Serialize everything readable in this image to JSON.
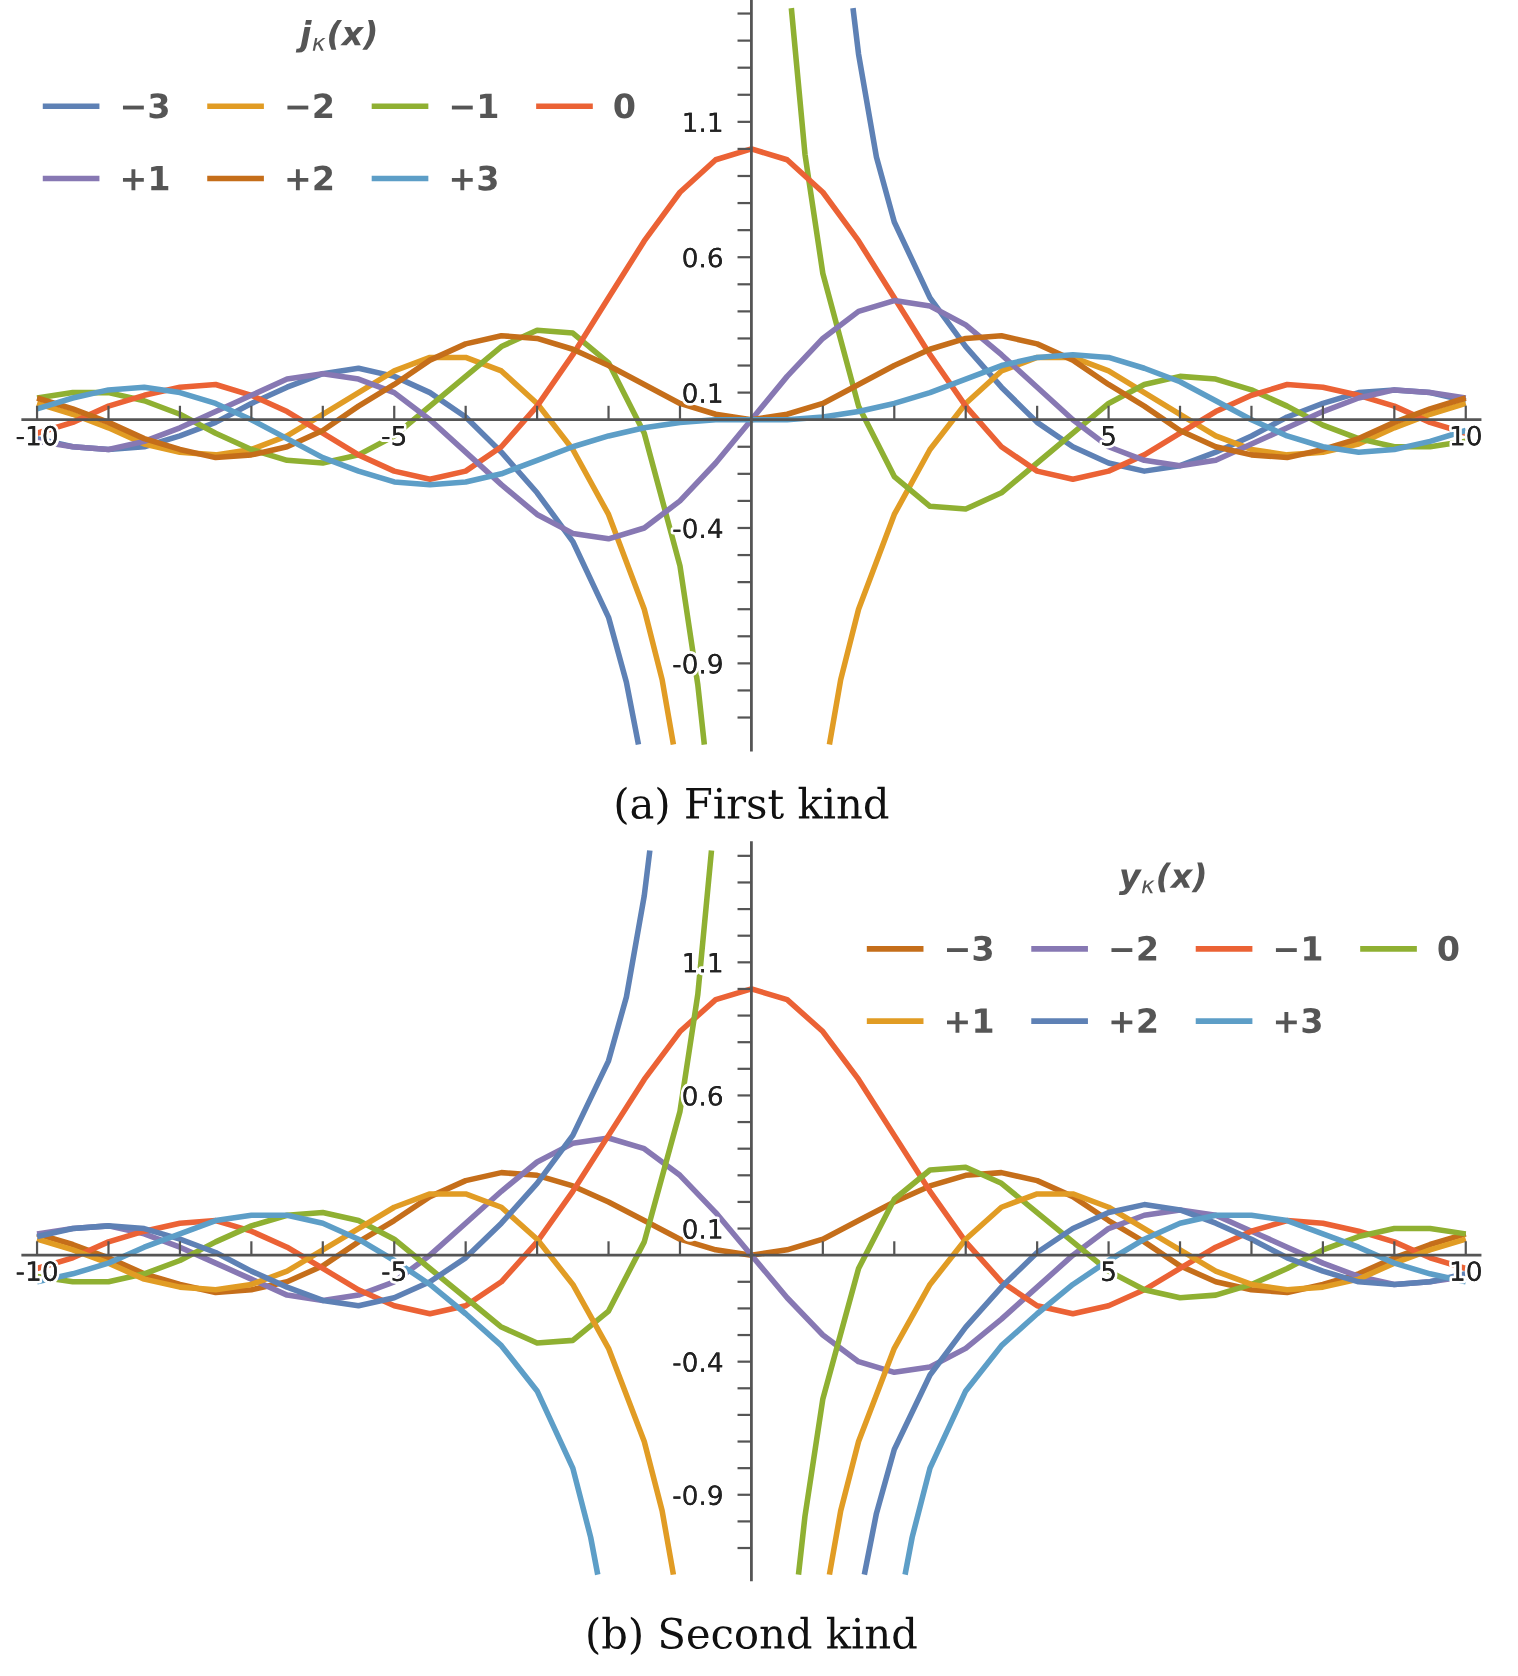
{
  "chart_data": [
    {
      "type": "line",
      "legend_title": "j$_{κ}$(x)",
      "legend": "top left",
      "annotations": [
        "(a) First kind"
      ],
      "xlim": [
        -10.2,
        10.2
      ],
      "ylim": [
        -1.22,
        1.55
      ],
      "xticks": [
        -10,
        {
          "value": -9,
          "label": null
        },
        {
          "value": -8,
          "label": null
        },
        {
          "value": -7,
          "label": null
        },
        {
          "value": -6,
          "label": null
        },
        -5,
        {
          "value": -4,
          "label": null
        },
        {
          "value": -3,
          "label": null
        },
        {
          "value": -2,
          "label": null
        },
        {
          "value": -1,
          "label": null
        },
        {
          "value": 1,
          "label": null
        },
        {
          "value": 2,
          "label": null
        },
        {
          "value": 3,
          "label": null
        },
        {
          "value": 4,
          "label": null
        },
        5,
        {
          "value": 6,
          "label": null
        },
        {
          "value": 7,
          "label": null
        },
        {
          "value": 8,
          "label": null
        },
        {
          "value": 9,
          "label": null
        },
        10
      ],
      "yticks": [
        {
          "value": -1.1,
          "label": null
        },
        {
          "value": -1.0,
          "label": null
        },
        -0.9,
        {
          "value": -0.8,
          "label": null
        },
        {
          "value": -0.7,
          "label": null
        },
        {
          "value": -0.6,
          "label": null
        },
        {
          "value": -0.5,
          "label": null
        },
        -0.4,
        {
          "value": -0.3,
          "label": null
        },
        {
          "value": -0.2,
          "label": null
        },
        {
          "value": -0.1,
          "label": null
        },
        0.1,
        {
          "value": 0.2,
          "label": null
        },
        {
          "value": 0.3,
          "label": null
        },
        {
          "value": 0.4,
          "label": null
        },
        {
          "value": 0.5,
          "label": null
        },
        0.6,
        {
          "value": 0.7,
          "label": null
        },
        {
          "value": 0.8,
          "label": null
        },
        {
          "value": 0.9,
          "label": null
        },
        {
          "value": 1.0,
          "label": null
        },
        1.1,
        {
          "value": 1.2,
          "label": null
        },
        {
          "value": 1.3,
          "label": null
        },
        {
          "value": 1.4,
          "label": null
        },
        {
          "value": 1.5,
          "label": null
        }
      ],
      "x": [
        -10,
        -9.5,
        -9,
        -8.5,
        -8,
        -7.5,
        -7,
        -6.5,
        -6,
        -5.5,
        -5,
        -4.5,
        -4,
        -3.5,
        -3,
        -2.5,
        -2,
        -1.5,
        -1,
        -0.5,
        0,
        0.5,
        1,
        1.5,
        2,
        2.5,
        3,
        3.5,
        4,
        4.5,
        5,
        5.5,
        6,
        6.5,
        7,
        7.5,
        8,
        8.5,
        9,
        9.5,
        10
      ],
      "series": [
        {
          "name": "−3",
          "color": "#5e81b5",
          "x": [
            -10,
            -9.5,
            -9,
            -8.5,
            -8,
            -7.5,
            -7,
            -6.5,
            -6,
            -5.5,
            -5,
            -4.5,
            -4,
            -3.5,
            -3,
            -2.5,
            -2,
            -1.75,
            -1.581,
            0,
            1.422,
            1.5,
            1.75,
            2,
            2.5,
            3,
            3.5,
            4,
            4.5,
            5,
            5.5,
            6,
            6.5,
            7,
            7.5,
            8,
            8.5,
            9,
            9.5,
            10
          ],
          "values": [
            -0.07,
            -0.1,
            -0.11,
            -0.1,
            -0.06,
            -0.01,
            0.06,
            0.12,
            0.17,
            0.19,
            0.16,
            0.1,
            0.01,
            -0.12,
            -0.27,
            -0.45,
            -0.73,
            -0.97,
            -1.2,
            null,
            1.52,
            1.35,
            0.97,
            0.73,
            0.45,
            0.27,
            0.12,
            -0.01,
            -0.1,
            -0.16,
            -0.19,
            -0.17,
            -0.12,
            -0.06,
            0.01,
            0.06,
            0.1,
            0.11,
            0.1,
            0.07
          ]
        },
        {
          "name": "−2",
          "color": "#e19c24",
          "x": [
            -10,
            -9.5,
            -9,
            -8.5,
            -8,
            -7.5,
            -7,
            -6.5,
            -6,
            -5.5,
            -5,
            -4.5,
            -4,
            -3.5,
            -3,
            -2.5,
            -2,
            -1.5,
            -1.25,
            -1.092,
            0,
            1.092,
            1.25,
            1.5,
            2,
            2.5,
            3,
            3.5,
            4,
            4.5,
            5,
            5.5,
            6,
            6.5,
            7,
            7.5,
            8,
            8.5,
            9,
            9.5,
            10
          ],
          "values": [
            0.06,
            0.02,
            -0.03,
            -0.09,
            -0.12,
            -0.13,
            -0.11,
            -0.06,
            0.02,
            0.1,
            0.18,
            0.23,
            0.23,
            0.18,
            0.06,
            -0.11,
            -0.35,
            -0.7,
            -0.96,
            -1.2,
            null,
            -1.2,
            -0.96,
            -0.7,
            -0.35,
            -0.11,
            0.06,
            0.18,
            0.23,
            0.23,
            0.18,
            0.1,
            0.02,
            -0.06,
            -0.11,
            -0.13,
            -0.12,
            -0.09,
            -0.03,
            0.02,
            0.06
          ]
        },
        {
          "name": "−1",
          "color": "#8fb032",
          "x": [
            -10,
            -9.5,
            -9,
            -8.5,
            -8,
            -7.5,
            -7,
            -6.5,
            -6,
            -5.5,
            -5,
            -4.5,
            -4,
            -3.5,
            -3,
            -2.5,
            -2,
            -1.5,
            -1,
            -0.75,
            -0.659,
            0,
            0.559,
            0.75,
            1,
            1.5,
            2,
            2.5,
            3,
            3.5,
            4,
            4.5,
            5,
            5.5,
            6,
            6.5,
            7,
            7.5,
            8,
            8.5,
            9,
            9.5,
            10
          ],
          "values": [
            0.08,
            0.1,
            0.1,
            0.07,
            0.02,
            -0.05,
            -0.11,
            -0.15,
            -0.16,
            -0.13,
            -0.06,
            0.05,
            0.16,
            0.27,
            0.33,
            0.32,
            0.21,
            -0.05,
            -0.54,
            -0.98,
            -1.2,
            null,
            1.52,
            0.98,
            0.54,
            0.05,
            -0.21,
            -0.32,
            -0.33,
            -0.27,
            -0.16,
            -0.05,
            0.06,
            0.13,
            0.16,
            0.15,
            0.11,
            0.05,
            -0.02,
            -0.07,
            -0.1,
            -0.1,
            -0.08
          ]
        },
        {
          "name": "0",
          "color": "#eb6235",
          "values": [
            -0.05,
            -0.01,
            0.05,
            0.09,
            0.12,
            0.13,
            0.09,
            0.03,
            -0.05,
            -0.13,
            -0.19,
            -0.22,
            -0.19,
            -0.1,
            0.05,
            0.24,
            0.45,
            0.66,
            0.84,
            0.96,
            1,
            0.96,
            0.84,
            0.66,
            0.45,
            0.24,
            0.05,
            -0.1,
            -0.19,
            -0.22,
            -0.19,
            -0.13,
            -0.05,
            0.03,
            0.09,
            0.13,
            0.12,
            0.09,
            0.05,
            -0.01,
            -0.05
          ]
        },
        {
          "name": "+1",
          "color": "#8778b3",
          "values": [
            -0.08,
            -0.1,
            -0.11,
            -0.08,
            -0.03,
            0.03,
            0.09,
            0.15,
            0.17,
            0.15,
            0.1,
            0.0,
            -0.12,
            -0.24,
            -0.35,
            -0.42,
            -0.44,
            -0.4,
            -0.3,
            -0.16,
            0,
            0.16,
            0.3,
            0.4,
            0.44,
            0.42,
            0.35,
            0.24,
            0.12,
            0.0,
            -0.1,
            -0.15,
            -0.17,
            -0.15,
            -0.09,
            -0.03,
            0.03,
            0.08,
            0.11,
            0.1,
            0.08
          ]
        },
        {
          "name": "+2",
          "color": "#c56e1a",
          "values": [
            0.08,
            0.04,
            -0.01,
            -0.07,
            -0.11,
            -0.14,
            -0.13,
            -0.1,
            -0.04,
            0.05,
            0.13,
            0.22,
            0.28,
            0.31,
            0.3,
            0.26,
            0.2,
            0.13,
            0.06,
            0.02,
            0,
            0.02,
            0.06,
            0.13,
            0.2,
            0.26,
            0.3,
            0.31,
            0.28,
            0.22,
            0.13,
            0.05,
            -0.04,
            -0.1,
            -0.13,
            -0.14,
            -0.11,
            -0.07,
            -0.01,
            0.04,
            0.08
          ]
        },
        {
          "name": "+3",
          "color": "#5d9ec7",
          "values": [
            0.04,
            0.08,
            0.11,
            0.12,
            0.1,
            0.06,
            0.0,
            -0.07,
            -0.14,
            -0.19,
            -0.23,
            -0.24,
            -0.23,
            -0.2,
            -0.15,
            -0.1,
            -0.06,
            -0.03,
            -0.01,
            0.0,
            0,
            0.0,
            0.01,
            0.03,
            0.06,
            0.1,
            0.15,
            0.2,
            0.23,
            0.24,
            0.23,
            0.19,
            0.14,
            0.07,
            0.0,
            -0.06,
            -0.1,
            -0.12,
            -0.11,
            -0.08,
            -0.04
          ]
        }
      ]
    },
    {
      "type": "line",
      "legend_title": "y$_{κ}$(x)",
      "legend": "top right",
      "annotations": [
        "(b) Second kind"
      ],
      "xlim": [
        -10.2,
        10.2
      ],
      "ylim": [
        -1.22,
        1.55
      ],
      "xticks": [
        -10,
        {
          "value": -9,
          "label": null
        },
        {
          "value": -8,
          "label": null
        },
        {
          "value": -7,
          "label": null
        },
        {
          "value": -6,
          "label": null
        },
        -5,
        {
          "value": -4,
          "label": null
        },
        {
          "value": -3,
          "label": null
        },
        {
          "value": -2,
          "label": null
        },
        {
          "value": -1,
          "label": null
        },
        {
          "value": 1,
          "label": null
        },
        {
          "value": 2,
          "label": null
        },
        {
          "value": 3,
          "label": null
        },
        {
          "value": 4,
          "label": null
        },
        5,
        {
          "value": 6,
          "label": null
        },
        {
          "value": 7,
          "label": null
        },
        {
          "value": 8,
          "label": null
        },
        {
          "value": 9,
          "label": null
        },
        10
      ],
      "yticks": [
        {
          "value": -1.1,
          "label": null
        },
        {
          "value": -1.0,
          "label": null
        },
        -0.9,
        {
          "value": -0.8,
          "label": null
        },
        {
          "value": -0.7,
          "label": null
        },
        {
          "value": -0.6,
          "label": null
        },
        {
          "value": -0.5,
          "label": null
        },
        -0.4,
        {
          "value": -0.3,
          "label": null
        },
        {
          "value": -0.2,
          "label": null
        },
        {
          "value": -0.1,
          "label": null
        },
        0.1,
        {
          "value": 0.2,
          "label": null
        },
        {
          "value": 0.3,
          "label": null
        },
        {
          "value": 0.4,
          "label": null
        },
        {
          "value": 0.5,
          "label": null
        },
        0.6,
        {
          "value": 0.7,
          "label": null
        },
        {
          "value": 0.8,
          "label": null
        },
        {
          "value": 0.9,
          "label": null
        },
        {
          "value": 1.0,
          "label": null
        },
        1.1,
        {
          "value": 1.2,
          "label": null
        },
        {
          "value": 1.3,
          "label": null
        },
        {
          "value": 1.4,
          "label": null
        },
        {
          "value": 1.5,
          "label": null
        }
      ],
      "x": [
        -10,
        -9.5,
        -9,
        -8.5,
        -8,
        -7.5,
        -7,
        -6.5,
        -6,
        -5.5,
        -5,
        -4.5,
        -4,
        -3.5,
        -3,
        -2.5,
        -2,
        -1.5,
        -1,
        -0.5,
        0,
        0.5,
        1,
        1.5,
        2,
        2.5,
        3,
        3.5,
        4,
        4.5,
        5,
        5.5,
        6,
        6.5,
        7,
        7.5,
        8,
        8.5,
        9,
        9.5,
        10
      ],
      "series": [
        {
          "name": "−3",
          "color": "#c56e1a",
          "values": [
            0.08,
            0.04,
            -0.01,
            -0.07,
            -0.11,
            -0.14,
            -0.13,
            -0.1,
            -0.04,
            0.05,
            0.13,
            0.22,
            0.28,
            0.31,
            0.3,
            0.26,
            0.2,
            0.13,
            0.06,
            0.02,
            0,
            0.02,
            0.06,
            0.13,
            0.2,
            0.26,
            0.3,
            0.31,
            0.28,
            0.22,
            0.13,
            0.05,
            -0.04,
            -0.1,
            -0.13,
            -0.14,
            -0.11,
            -0.07,
            -0.01,
            0.04,
            0.08
          ]
        },
        {
          "name": "−2",
          "color": "#8778b3",
          "values": [
            0.08,
            0.1,
            0.11,
            0.08,
            0.03,
            -0.03,
            -0.09,
            -0.15,
            -0.17,
            -0.15,
            -0.1,
            0.0,
            0.12,
            0.24,
            0.35,
            0.42,
            0.44,
            0.4,
            0.3,
            0.16,
            0,
            -0.16,
            -0.3,
            -0.4,
            -0.44,
            -0.42,
            -0.35,
            -0.24,
            -0.12,
            0.0,
            0.1,
            0.15,
            0.17,
            0.15,
            0.09,
            0.03,
            -0.03,
            -0.08,
            -0.11,
            -0.1,
            -0.08
          ]
        },
        {
          "name": "−1",
          "color": "#eb6235",
          "values": [
            -0.05,
            -0.01,
            0.05,
            0.09,
            0.12,
            0.13,
            0.09,
            0.03,
            -0.05,
            -0.13,
            -0.19,
            -0.22,
            -0.19,
            -0.1,
            0.05,
            0.24,
            0.45,
            0.66,
            0.84,
            0.96,
            1,
            0.96,
            0.84,
            0.66,
            0.45,
            0.24,
            0.05,
            -0.1,
            -0.19,
            -0.22,
            -0.19,
            -0.13,
            -0.05,
            0.03,
            0.09,
            0.13,
            0.12,
            0.09,
            0.05,
            -0.01,
            -0.05
          ]
        },
        {
          "name": "0",
          "color": "#8fb032",
          "x": [
            -10,
            -9.5,
            -9,
            -8.5,
            -8,
            -7.5,
            -7,
            -6.5,
            -6,
            -5.5,
            -5,
            -4.5,
            -4,
            -3.5,
            -3,
            -2.5,
            -2,
            -1.5,
            -1,
            -0.75,
            -0.559,
            0,
            0.659,
            0.75,
            1,
            1.5,
            2,
            2.5,
            3,
            3.5,
            4,
            4.5,
            5,
            5.5,
            6,
            6.5,
            7,
            7.5,
            8,
            8.5,
            9,
            9.5,
            10
          ],
          "values": [
            -0.08,
            -0.1,
            -0.1,
            -0.07,
            -0.02,
            0.05,
            0.11,
            0.15,
            0.16,
            0.13,
            0.06,
            -0.05,
            -0.16,
            -0.27,
            -0.33,
            -0.32,
            -0.21,
            0.05,
            0.54,
            0.98,
            1.52,
            null,
            -1.2,
            -0.98,
            -0.54,
            -0.05,
            0.21,
            0.32,
            0.33,
            0.27,
            0.16,
            0.05,
            -0.06,
            -0.13,
            -0.16,
            -0.15,
            -0.11,
            -0.05,
            0.02,
            0.07,
            0.1,
            0.1,
            0.08
          ]
        },
        {
          "name": "+1",
          "color": "#e19c24",
          "x": [
            -10,
            -9.5,
            -9,
            -8.5,
            -8,
            -7.5,
            -7,
            -6.5,
            -6,
            -5.5,
            -5,
            -4.5,
            -4,
            -3.5,
            -3,
            -2.5,
            -2,
            -1.5,
            -1.25,
            -1.092,
            0,
            1.092,
            1.25,
            1.5,
            2,
            2.5,
            3,
            3.5,
            4,
            4.5,
            5,
            5.5,
            6,
            6.5,
            7,
            7.5,
            8,
            8.5,
            9,
            9.5,
            10
          ],
          "values": [
            0.06,
            0.02,
            -0.03,
            -0.09,
            -0.12,
            -0.13,
            -0.11,
            -0.06,
            0.02,
            0.1,
            0.18,
            0.23,
            0.23,
            0.18,
            0.06,
            -0.11,
            -0.35,
            -0.7,
            -0.96,
            -1.2,
            null,
            -1.2,
            -0.96,
            -0.7,
            -0.35,
            -0.11,
            0.06,
            0.18,
            0.23,
            0.23,
            0.18,
            0.1,
            0.02,
            -0.06,
            -0.11,
            -0.13,
            -0.12,
            -0.09,
            -0.03,
            0.02,
            0.06
          ]
        },
        {
          "name": "+2",
          "color": "#5e81b5",
          "x": [
            -10,
            -9.5,
            -9,
            -8.5,
            -8,
            -7.5,
            -7,
            -6.5,
            -6,
            -5.5,
            -5,
            -4.5,
            -4,
            -3.5,
            -3,
            -2.5,
            -2,
            -1.75,
            -1.5,
            -1.422,
            0,
            1.581,
            1.75,
            2,
            2.5,
            3,
            3.5,
            4,
            4.5,
            5,
            5.5,
            6,
            6.5,
            7,
            7.5,
            8,
            8.5,
            9,
            9.5,
            10
          ],
          "values": [
            0.07,
            0.1,
            0.11,
            0.1,
            0.06,
            0.01,
            -0.06,
            -0.12,
            -0.17,
            -0.19,
            -0.16,
            -0.1,
            -0.01,
            0.12,
            0.27,
            0.45,
            0.73,
            0.97,
            1.35,
            1.52,
            null,
            -1.2,
            -0.97,
            -0.73,
            -0.45,
            -0.27,
            -0.12,
            0.01,
            0.1,
            0.16,
            0.19,
            0.17,
            0.12,
            0.06,
            -0.01,
            -0.06,
            -0.1,
            -0.11,
            -0.1,
            -0.07
          ]
        },
        {
          "name": "+3",
          "color": "#5d9ec7",
          "x": [
            -10,
            -9.5,
            -9,
            -8.5,
            -8,
            -7.5,
            -7,
            -6.5,
            -6,
            -5.5,
            -5,
            -4.5,
            -4,
            -3.5,
            -3,
            -2.5,
            -2.25,
            -2.151,
            0,
            2.151,
            2.25,
            2.5,
            3,
            3.5,
            4,
            4.5,
            5,
            5.5,
            6,
            6.5,
            7,
            7.5,
            8,
            8.5,
            9,
            9.5,
            10
          ],
          "values": [
            -0.1,
            -0.07,
            -0.03,
            0.03,
            0.08,
            0.13,
            0.15,
            0.15,
            0.12,
            0.06,
            -0.02,
            -0.11,
            -0.22,
            -0.34,
            -0.51,
            -0.8,
            -1.06,
            -1.2,
            null,
            -1.2,
            -1.06,
            -0.8,
            -0.51,
            -0.34,
            -0.22,
            -0.11,
            -0.02,
            0.06,
            0.12,
            0.15,
            0.15,
            0.13,
            0.08,
            0.03,
            -0.03,
            -0.07,
            -0.1
          ]
        }
      ]
    }
  ]
}
